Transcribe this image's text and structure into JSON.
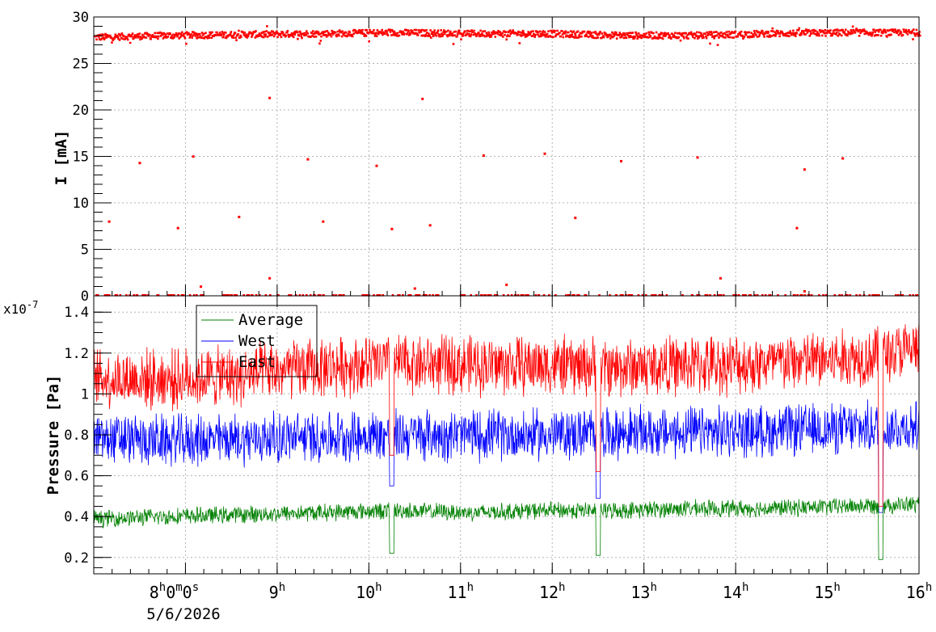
{
  "chart_data": [
    {
      "type": "scatter",
      "panel": "top",
      "ylabel": "I [mA]",
      "ylim": [
        0,
        30
      ],
      "yticks": [
        "0",
        "5",
        "10",
        "15",
        "20",
        "25",
        "30"
      ],
      "grid": true,
      "x_range": [
        "7:00",
        "16:00"
      ],
      "series": [
        {
          "color": "#ff0000",
          "main_band": {
            "x_start": "7:00",
            "x_end": "16:00",
            "y_center": [
              27.8,
              28.0,
              28.1,
              28.2,
              28.3,
              28.2,
              28.2,
              28.0,
              28.0,
              28.2,
              28.3,
              28.3
            ]
          },
          "outliers": [
            {
              "x": "8:55",
              "y": 21.3
            },
            {
              "x": "10:35",
              "y": 21.2
            },
            {
              "x": "7:30",
              "y": 14.3
            },
            {
              "x": "8:05",
              "y": 15.0
            },
            {
              "x": "9:20",
              "y": 14.7
            },
            {
              "x": "10:05",
              "y": 14.0
            },
            {
              "x": "11:15",
              "y": 15.1
            },
            {
              "x": "11:55",
              "y": 15.3
            },
            {
              "x": "12:45",
              "y": 14.5
            },
            {
              "x": "13:35",
              "y": 14.9
            },
            {
              "x": "14:45",
              "y": 13.6
            },
            {
              "x": "15:10",
              "y": 14.8
            },
            {
              "x": "7:10",
              "y": 8.0
            },
            {
              "x": "7:55",
              "y": 7.3
            },
            {
              "x": "8:35",
              "y": 8.5
            },
            {
              "x": "9:30",
              "y": 8.0
            },
            {
              "x": "10:15",
              "y": 7.2
            },
            {
              "x": "10:40",
              "y": 7.6
            },
            {
              "x": "12:15",
              "y": 8.4
            },
            {
              "x": "14:40",
              "y": 7.3
            },
            {
              "x": "8:10",
              "y": 1.0
            },
            {
              "x": "8:55",
              "y": 1.9
            },
            {
              "x": "10:30",
              "y": 0.8
            },
            {
              "x": "11:30",
              "y": 1.2
            },
            {
              "x": "13:50",
              "y": 1.9
            },
            {
              "x": "14:45",
              "y": 0.5
            }
          ]
        }
      ]
    },
    {
      "type": "line",
      "panel": "bottom",
      "ylabel": "Pressure [Pa]",
      "yscale_label": "x10",
      "yscale_exponent": "-7",
      "ylim": [
        0.12,
        1.48
      ],
      "yticks": [
        "0.2",
        "0.4",
        "0.6",
        "0.8",
        "1",
        "1.2",
        "1.4"
      ],
      "grid": true,
      "legend_placement": "top-left",
      "series": [
        {
          "name": "Average",
          "color": "#008000",
          "center": [
            0.39,
            0.4,
            0.41,
            0.42,
            0.43,
            0.42,
            0.43,
            0.43,
            0.44,
            0.44,
            0.45,
            0.46
          ],
          "half_range": 0.04,
          "dips": [
            {
              "x": "10:15",
              "y": 0.22
            },
            {
              "x": "12:30",
              "y": 0.21
            },
            {
              "x": "15:35",
              "y": 0.19
            }
          ]
        },
        {
          "name": "West",
          "color": "#0000ff",
          "center": [
            0.78,
            0.77,
            0.78,
            0.79,
            0.8,
            0.8,
            0.8,
            0.81,
            0.81,
            0.82,
            0.83,
            0.84
          ],
          "half_range": 0.12,
          "dips": [
            {
              "x": "10:15",
              "y": 0.55
            },
            {
              "x": "12:30",
              "y": 0.49
            },
            {
              "x": "15:35",
              "y": 0.42
            }
          ]
        },
        {
          "name": "East",
          "color": "#ff0000",
          "center": [
            1.08,
            1.07,
            1.09,
            1.13,
            1.15,
            1.14,
            1.14,
            1.13,
            1.14,
            1.15,
            1.17,
            1.22
          ],
          "half_range": 0.14,
          "dips": [
            {
              "x": "10:15",
              "y": 0.7
            },
            {
              "x": "12:30",
              "y": 0.62
            },
            {
              "x": "15:35",
              "y": 0.45
            }
          ]
        }
      ]
    }
  ],
  "x_axis": {
    "ticks": [
      {
        "time": "8:00",
        "main": "8",
        "sup": "h",
        "suffix": "0",
        "sup2": "m",
        "suffix2": "0",
        "sup3": "s"
      },
      {
        "time": "9:00",
        "main": "9",
        "sup": "h"
      },
      {
        "time": "10:00",
        "main": "10",
        "sup": "h"
      },
      {
        "time": "11:00",
        "main": "11",
        "sup": "h"
      },
      {
        "time": "12:00",
        "main": "12",
        "sup": "h"
      },
      {
        "time": "13:00",
        "main": "13",
        "sup": "h"
      },
      {
        "time": "14:00",
        "main": "14",
        "sup": "h"
      },
      {
        "time": "15:00",
        "main": "15",
        "sup": "h"
      },
      {
        "time": "16:00",
        "main": "16",
        "sup": "h"
      }
    ],
    "date": "5/6/2026"
  }
}
